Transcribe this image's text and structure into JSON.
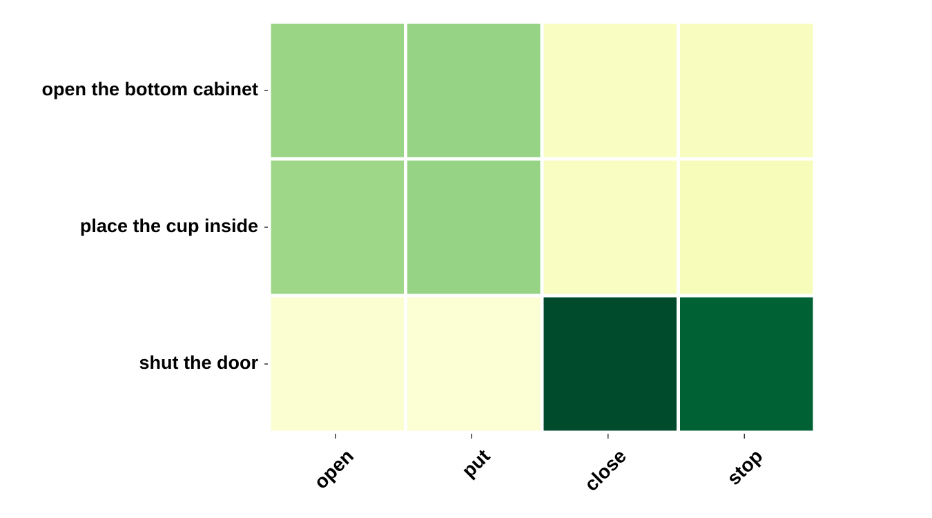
{
  "chart_data": {
    "type": "heatmap",
    "title": "",
    "xlabel": "",
    "ylabel": "",
    "x_categories": [
      "open",
      "put",
      "close",
      "stop"
    ],
    "y_categories": [
      "open the bottom cabinet",
      "place the cup inside",
      "shut the door"
    ],
    "values": [
      [
        0.42,
        0.43,
        0.1,
        0.11
      ],
      [
        0.41,
        0.43,
        0.1,
        0.12
      ],
      [
        0.06,
        0.05,
        0.98,
        0.9
      ]
    ],
    "value_range": [
      0,
      1
    ],
    "colorscale": [
      "#ffffe5",
      "#f7fcb9",
      "#d9f0a3",
      "#addd8e",
      "#78c679",
      "#41ab5d",
      "#238443",
      "#006837",
      "#004529"
    ],
    "grid": false,
    "legend": "none"
  }
}
